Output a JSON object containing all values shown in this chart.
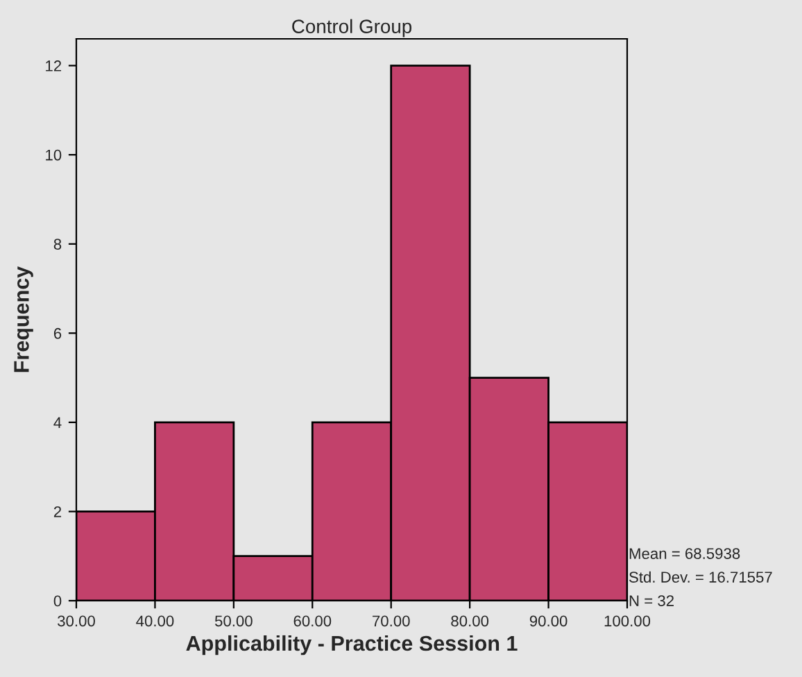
{
  "chart_data": {
    "type": "histogram",
    "title": "Control Group",
    "xlabel": "Applicability - Practice Session 1",
    "ylabel": "Frequency",
    "bins": [
      30,
      40,
      50,
      60,
      70,
      80,
      90,
      100
    ],
    "values": [
      2,
      4,
      1,
      4,
      12,
      5,
      4
    ],
    "color": "#c2416b",
    "xlim": [
      30,
      100
    ],
    "ylim": [
      0,
      12.6
    ],
    "xticks": [
      {
        "value": 30,
        "label": "30.00"
      },
      {
        "value": 40,
        "label": "40.00"
      },
      {
        "value": 50,
        "label": "50.00"
      },
      {
        "value": 60,
        "label": "60.00"
      },
      {
        "value": 70,
        "label": "70.00"
      },
      {
        "value": 80,
        "label": "80.00"
      },
      {
        "value": 90,
        "label": "90.00"
      },
      {
        "value": 100,
        "label": "100.00"
      }
    ],
    "yticks": [
      0,
      2,
      4,
      6,
      8,
      10,
      12
    ],
    "grid": false,
    "annotations": [
      "Mean = 68.5938",
      "Std. Dev. = 16.71557",
      "N = 32"
    ]
  }
}
